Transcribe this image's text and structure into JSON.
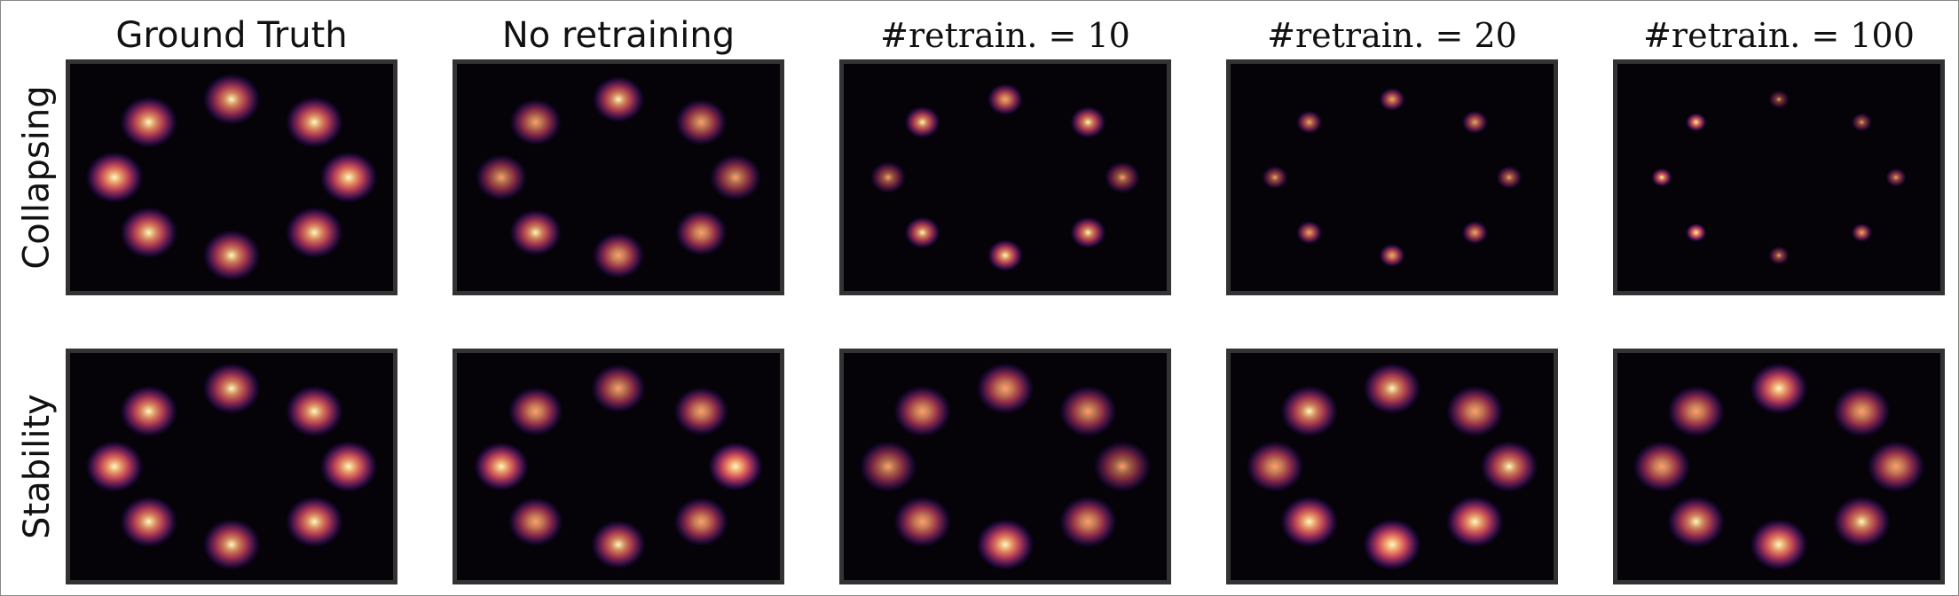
{
  "columns": [
    {
      "title": "Ground Truth",
      "style": "sans"
    },
    {
      "title": "No retraining",
      "style": "sans"
    },
    {
      "title": "#retrain. = 10",
      "style": "serif"
    },
    {
      "title": "#retrain. = 20",
      "style": "serif"
    },
    {
      "title": "#retrain. = 100",
      "style": "serif"
    }
  ],
  "rows": [
    {
      "label": "Collapsing"
    },
    {
      "label": "Stability"
    }
  ],
  "colors": {
    "background": "#050208",
    "colormap": [
      "#050208",
      "#3b0f70",
      "#8c2981",
      "#de4968",
      "#fe9f6d",
      "#fcfdbf"
    ],
    "panel_border": "#333333"
  },
  "panels": [
    [
      {
        "spread": 1.0,
        "intensity": [
          0.95,
          0.9,
          0.85,
          0.9,
          0.95,
          0.9,
          0.85,
          0.9
        ]
      },
      {
        "spread": 0.9,
        "intensity": [
          0.7,
          0.75,
          0.85,
          0.75,
          0.7,
          0.8,
          0.8,
          0.85
        ]
      },
      {
        "spread": 0.62,
        "intensity": [
          0.6,
          0.85,
          0.8,
          0.85,
          0.6,
          0.85,
          0.9,
          0.85
        ]
      },
      {
        "spread": 0.45,
        "intensity": [
          0.6,
          0.7,
          0.75,
          0.7,
          0.6,
          0.75,
          0.8,
          0.75
        ]
      },
      {
        "spread": 0.36,
        "intensity": [
          0.85,
          0.9,
          0.45,
          0.55,
          0.6,
          0.75,
          0.55,
          0.95
        ]
      }
    ],
    [
      {
        "spread": 1.0,
        "intensity": [
          0.95,
          0.9,
          0.85,
          0.9,
          0.95,
          0.9,
          0.85,
          0.9
        ]
      },
      {
        "spread": 0.95,
        "intensity": [
          0.95,
          0.8,
          0.75,
          0.8,
          1.0,
          0.8,
          0.85,
          0.8
        ]
      },
      {
        "spread": 1.0,
        "intensity": [
          0.7,
          0.8,
          0.8,
          0.75,
          0.65,
          0.8,
          0.95,
          0.8
        ]
      },
      {
        "spread": 1.0,
        "intensity": [
          0.8,
          0.85,
          0.85,
          0.8,
          0.85,
          0.95,
          1.0,
          0.95
        ]
      },
      {
        "spread": 1.0,
        "intensity": [
          0.8,
          0.8,
          0.95,
          0.8,
          0.8,
          0.85,
          0.95,
          0.85
        ]
      }
    ]
  ]
}
